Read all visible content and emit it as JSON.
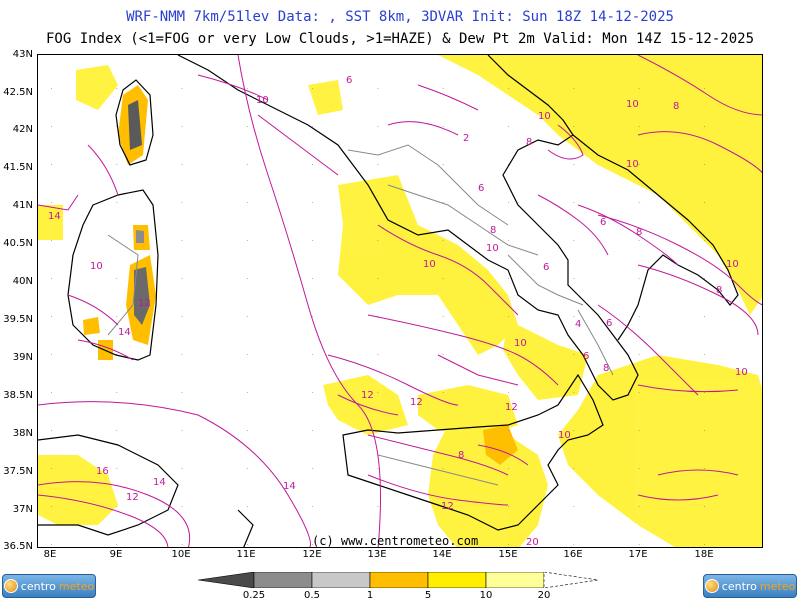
{
  "header": {
    "line1": "WRF-NMM 7km/51lev  Data: , SST 8km, 3DVAR  Init: Sun 18Z 14-12-2025",
    "line2": "FOG Index (<1=FOG or very Low Clouds, >1=HAZE) & Dew Pt 2m  Valid: Mon 14Z 15-12-2025"
  },
  "axes": {
    "lat_labels": [
      "43N",
      "42.5N",
      "42N",
      "41.5N",
      "41N",
      "40.5N",
      "40N",
      "39.5N",
      "39N",
      "38.5N",
      "38N",
      "37.5N",
      "37N",
      "36.5N"
    ],
    "lon_labels": [
      "8E",
      "9E",
      "10E",
      "11E",
      "12E",
      "13E",
      "14E",
      "15E",
      "16E",
      "17E",
      "18E"
    ]
  },
  "credit": "(c) www.centrometeo.com",
  "logo": {
    "part1": "centro",
    "part2": "meteo"
  },
  "legend": {
    "labels": [
      "0.25",
      "0.5",
      "1",
      "5",
      "10",
      "20"
    ],
    "colors": [
      "#4a4a4a",
      "#8c8c8c",
      "#c8c8c8",
      "#ffbf00",
      "#ffee00",
      "#ffff99"
    ]
  },
  "contours": {
    "dew_point_labels": [
      "10",
      "10",
      "10",
      "10",
      "10",
      "10",
      "10",
      "10",
      "10",
      "10",
      "10",
      "8",
      "8",
      "8",
      "8",
      "8",
      "8",
      "8",
      "6",
      "6",
      "6",
      "6",
      "6",
      "6",
      "4",
      "2",
      "12",
      "12",
      "12",
      "12",
      "12",
      "12",
      "14",
      "14",
      "14",
      "14",
      "16",
      "20"
    ]
  },
  "colors": {
    "title": "#2a3fd0",
    "contour": "#c0189a",
    "coast": "#000000",
    "border": "#888888"
  }
}
